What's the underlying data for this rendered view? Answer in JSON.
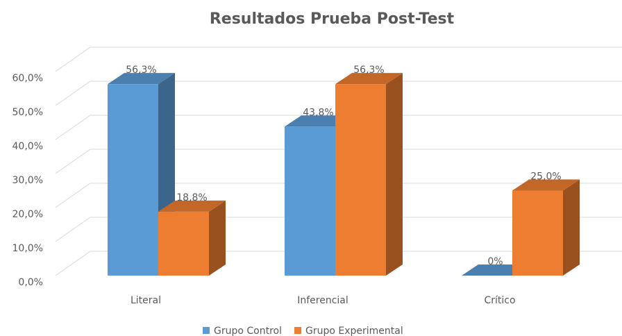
{
  "chart_data": {
    "type": "bar3d",
    "title": "Resultados Prueba Post-Test",
    "categories": [
      "Literal",
      "Inferencial",
      "Crítico"
    ],
    "series": [
      {
        "name": "Grupo Control",
        "color": "#5b9bd5",
        "values": [
          56.3,
          43.8,
          0
        ],
        "value_labels": [
          "56,3%",
          "43,8%",
          "0%"
        ]
      },
      {
        "name": "Grupo Experimental",
        "color": "#ed7d31",
        "values": [
          18.8,
          56.3,
          25.0
        ],
        "value_labels": [
          "18,8%",
          "56,3%",
          "25,0%"
        ]
      }
    ],
    "ylim": [
      0,
      60
    ],
    "yticks": [
      {
        "value": 0,
        "label": "0,0%"
      },
      {
        "value": 10,
        "label": "10,0%"
      },
      {
        "value": 20,
        "label": "20,0%"
      },
      {
        "value": 30,
        "label": "30,0%"
      },
      {
        "value": 40,
        "label": "40,0%"
      },
      {
        "value": 50,
        "label": "50,0%"
      },
      {
        "value": 60,
        "label": "60,0%"
      }
    ],
    "grid": true,
    "legend": "bottom"
  }
}
